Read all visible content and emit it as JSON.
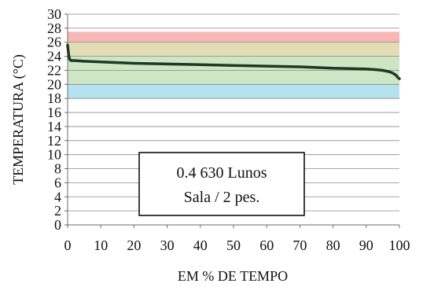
{
  "chart_data": {
    "type": "line",
    "title": "",
    "xlabel": "EM % DE TEMPO",
    "ylabel": "TEMPERATURA (°C)",
    "xlim": [
      0,
      100
    ],
    "ylim": [
      0,
      30
    ],
    "x_ticks": [
      "0",
      "10",
      "20",
      "30",
      "40",
      "50",
      "60",
      "70",
      "80",
      "90",
      "100"
    ],
    "y_ticks": [
      "0",
      "2",
      "4",
      "6",
      "8",
      "10",
      "12",
      "14",
      "16",
      "18",
      "20",
      "22",
      "24",
      "26",
      "28",
      "30"
    ],
    "grid": "horizontal",
    "bands": [
      {
        "from": 18,
        "to": 20,
        "color": "#b4e2ee"
      },
      {
        "from": 20,
        "to": 24,
        "color": "#cfe6c4"
      },
      {
        "from": 24,
        "to": 26,
        "color": "#e2ddb4"
      },
      {
        "from": 26,
        "to": 27.5,
        "color": "#f7b7b7"
      }
    ],
    "series": [
      {
        "color": "#1e3a22",
        "x": [
          0,
          0.3,
          0.6,
          1,
          2,
          5,
          10,
          20,
          30,
          40,
          50,
          60,
          70,
          80,
          85,
          90,
          93,
          95,
          97,
          98,
          99,
          99.5,
          100
        ],
        "y": [
          25.6,
          24.2,
          23.6,
          23.4,
          23.4,
          23.3,
          23.2,
          23.0,
          22.9,
          22.8,
          22.7,
          22.6,
          22.5,
          22.3,
          22.25,
          22.2,
          22.1,
          22.0,
          21.8,
          21.6,
          21.3,
          21.0,
          20.8
        ]
      }
    ],
    "annotation": {
      "lines": [
        "0.4 630 Lunos",
        "Sala / 2 pes."
      ]
    }
  }
}
